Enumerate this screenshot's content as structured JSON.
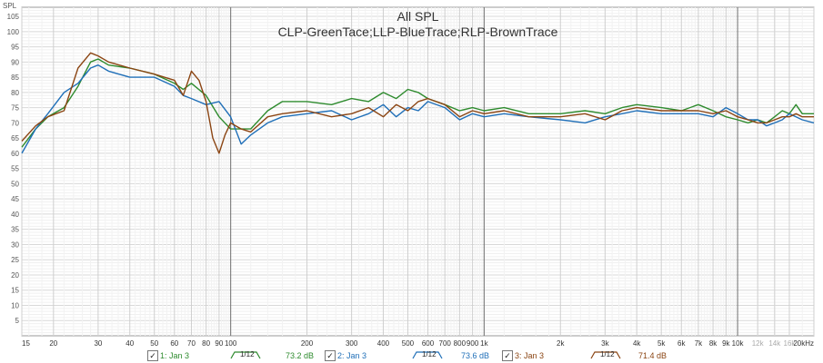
{
  "chart_data": {
    "type": "line",
    "title": "All SPL",
    "subtitle": "CLP-GreenTace;LLP-BlueTrace;RLP-BrownTrace",
    "ylabel": "SPL",
    "ylim": [
      0,
      108
    ],
    "xlim": [
      15,
      20000
    ],
    "xscale": "log",
    "y_ticks": [
      5,
      10,
      15,
      20,
      25,
      30,
      35,
      40,
      45,
      50,
      55,
      60,
      65,
      70,
      75,
      80,
      85,
      90,
      95,
      100,
      105
    ],
    "x_ticks": [
      {
        "f": 15,
        "label": "15"
      },
      {
        "f": 20,
        "label": "20"
      },
      {
        "f": 30,
        "label": "30"
      },
      {
        "f": 40,
        "label": "40"
      },
      {
        "f": 50,
        "label": "50"
      },
      {
        "f": 60,
        "label": "60"
      },
      {
        "f": 70,
        "label": "70"
      },
      {
        "f": 80,
        "label": "80"
      },
      {
        "f": 90,
        "label": "90"
      },
      {
        "f": 100,
        "label": "100"
      },
      {
        "f": 200,
        "label": "200"
      },
      {
        "f": 300,
        "label": "300"
      },
      {
        "f": 400,
        "label": "400"
      },
      {
        "f": 500,
        "label": "500"
      },
      {
        "f": 600,
        "label": "600"
      },
      {
        "f": 700,
        "label": "700"
      },
      {
        "f": 800,
        "label": "800"
      },
      {
        "f": 900,
        "label": "900"
      },
      {
        "f": 1000,
        "label": "1k"
      },
      {
        "f": 2000,
        "label": "2k"
      },
      {
        "f": 3000,
        "label": "3k"
      },
      {
        "f": 4000,
        "label": "4k"
      },
      {
        "f": 5000,
        "label": "5k"
      },
      {
        "f": 6000,
        "label": "6k"
      },
      {
        "f": 7000,
        "label": "7k"
      },
      {
        "f": 8000,
        "label": "8k"
      },
      {
        "f": 9000,
        "label": "9k"
      },
      {
        "f": 10000,
        "label": "10k"
      },
      {
        "f": 12000,
        "label": "12k",
        "faded": true
      },
      {
        "f": 14000,
        "label": "14k",
        "faded": true
      },
      {
        "f": 16000,
        "label": "16k",
        "faded": true
      },
      {
        "f": 20000,
        "label": "20kHz"
      }
    ],
    "grid": true,
    "series": [
      {
        "name": "1: Jan 3",
        "color": "#2e8b2e",
        "smoothing": "1/12",
        "level": "73.2 dB",
        "points": [
          [
            15,
            62
          ],
          [
            17,
            68
          ],
          [
            19,
            72
          ],
          [
            22,
            75
          ],
          [
            25,
            82
          ],
          [
            28,
            90
          ],
          [
            30,
            91
          ],
          [
            33,
            89
          ],
          [
            40,
            88
          ],
          [
            50,
            86
          ],
          [
            60,
            83
          ],
          [
            65,
            81
          ],
          [
            70,
            83
          ],
          [
            80,
            79
          ],
          [
            90,
            72
          ],
          [
            100,
            68
          ],
          [
            120,
            68
          ],
          [
            140,
            74
          ],
          [
            160,
            77
          ],
          [
            200,
            77
          ],
          [
            250,
            76
          ],
          [
            300,
            78
          ],
          [
            350,
            77
          ],
          [
            400,
            80
          ],
          [
            450,
            78
          ],
          [
            500,
            81
          ],
          [
            550,
            80
          ],
          [
            600,
            78
          ],
          [
            700,
            76
          ],
          [
            800,
            74
          ],
          [
            900,
            75
          ],
          [
            1000,
            74
          ],
          [
            1200,
            75
          ],
          [
            1500,
            73
          ],
          [
            2000,
            73
          ],
          [
            2500,
            74
          ],
          [
            3000,
            73
          ],
          [
            3500,
            75
          ],
          [
            4000,
            76
          ],
          [
            5000,
            75
          ],
          [
            6000,
            74
          ],
          [
            7000,
            76
          ],
          [
            8000,
            74
          ],
          [
            9000,
            72
          ],
          [
            10000,
            71
          ],
          [
            11000,
            70
          ],
          [
            12000,
            71
          ],
          [
            13000,
            70
          ],
          [
            14000,
            72
          ],
          [
            15000,
            74
          ],
          [
            16000,
            73
          ],
          [
            17000,
            76
          ],
          [
            18000,
            73
          ],
          [
            20000,
            73
          ]
        ]
      },
      {
        "name": "2: Jan 3",
        "color": "#1f6fb8",
        "smoothing": "1/12",
        "level": "73.6 dB",
        "points": [
          [
            15,
            60
          ],
          [
            17,
            68
          ],
          [
            19,
            73
          ],
          [
            22,
            80
          ],
          [
            25,
            83
          ],
          [
            28,
            88
          ],
          [
            30,
            89
          ],
          [
            33,
            87
          ],
          [
            40,
            85
          ],
          [
            50,
            85
          ],
          [
            60,
            82
          ],
          [
            65,
            79
          ],
          [
            70,
            78
          ],
          [
            80,
            76
          ],
          [
            90,
            77
          ],
          [
            100,
            72
          ],
          [
            110,
            63
          ],
          [
            120,
            66
          ],
          [
            140,
            70
          ],
          [
            160,
            72
          ],
          [
            200,
            73
          ],
          [
            250,
            74
          ],
          [
            300,
            71
          ],
          [
            350,
            73
          ],
          [
            400,
            76
          ],
          [
            450,
            72
          ],
          [
            500,
            75
          ],
          [
            550,
            74
          ],
          [
            600,
            77
          ],
          [
            700,
            75
          ],
          [
            800,
            71
          ],
          [
            900,
            73
          ],
          [
            1000,
            72
          ],
          [
            1200,
            73
          ],
          [
            1500,
            72
          ],
          [
            2000,
            71
          ],
          [
            2500,
            70
          ],
          [
            3000,
            72
          ],
          [
            3500,
            73
          ],
          [
            4000,
            74
          ],
          [
            5000,
            73
          ],
          [
            6000,
            73
          ],
          [
            7000,
            73
          ],
          [
            8000,
            72
          ],
          [
            9000,
            75
          ],
          [
            10000,
            73
          ],
          [
            11000,
            71
          ],
          [
            12000,
            71
          ],
          [
            13000,
            69
          ],
          [
            14000,
            70
          ],
          [
            15000,
            71
          ],
          [
            16000,
            73
          ],
          [
            17000,
            72
          ],
          [
            18000,
            71
          ],
          [
            20000,
            70
          ]
        ]
      },
      {
        "name": "3: Jan 3",
        "color": "#8b4513",
        "smoothing": "1/12",
        "level": "71.4 dB",
        "points": [
          [
            15,
            64
          ],
          [
            17,
            69
          ],
          [
            19,
            72
          ],
          [
            22,
            74
          ],
          [
            25,
            88
          ],
          [
            28,
            93
          ],
          [
            30,
            92
          ],
          [
            33,
            90
          ],
          [
            40,
            88
          ],
          [
            50,
            86
          ],
          [
            60,
            84
          ],
          [
            65,
            79
          ],
          [
            70,
            87
          ],
          [
            75,
            84
          ],
          [
            80,
            77
          ],
          [
            85,
            65
          ],
          [
            90,
            60
          ],
          [
            95,
            66
          ],
          [
            100,
            70
          ],
          [
            110,
            68
          ],
          [
            120,
            67
          ],
          [
            140,
            72
          ],
          [
            160,
            73
          ],
          [
            200,
            74
          ],
          [
            250,
            72
          ],
          [
            300,
            73
          ],
          [
            350,
            75
          ],
          [
            400,
            72
          ],
          [
            450,
            76
          ],
          [
            500,
            74
          ],
          [
            550,
            77
          ],
          [
            600,
            78
          ],
          [
            700,
            76
          ],
          [
            800,
            72
          ],
          [
            900,
            74
          ],
          [
            1000,
            73
          ],
          [
            1200,
            74
          ],
          [
            1500,
            72
          ],
          [
            2000,
            72
          ],
          [
            2500,
            73
          ],
          [
            3000,
            71
          ],
          [
            3500,
            74
          ],
          [
            4000,
            75
          ],
          [
            5000,
            74
          ],
          [
            6000,
            74
          ],
          [
            7000,
            74
          ],
          [
            8000,
            73
          ],
          [
            9000,
            74
          ],
          [
            10000,
            72
          ],
          [
            11000,
            71
          ],
          [
            12000,
            70
          ],
          [
            13000,
            70
          ],
          [
            14000,
            71
          ],
          [
            15000,
            72
          ],
          [
            16000,
            72
          ],
          [
            17000,
            73
          ],
          [
            18000,
            72
          ],
          [
            20000,
            72
          ]
        ]
      }
    ]
  }
}
